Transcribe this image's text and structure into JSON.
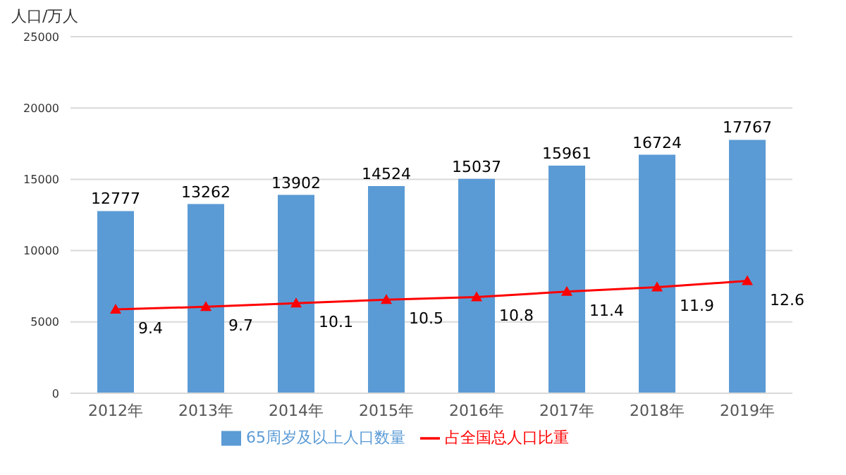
{
  "chart_data": {
    "type": "bar",
    "ylabel": "人口/万人",
    "categories": [
      "2012年",
      "2013年",
      "2014年",
      "2015年",
      "2016年",
      "2017年",
      "2018年",
      "2019年"
    ],
    "series": [
      {
        "name": "65周岁及以上人口数量",
        "color": "#5b9bd5",
        "values": [
          12777,
          13262,
          13902,
          14524,
          15037,
          15961,
          16724,
          17767
        ]
      },
      {
        "name": "占全国总人口比重",
        "type": "line",
        "axis": "y2",
        "color": "#ff0000",
        "marker": "triangle",
        "values": [
          9.4,
          9.7,
          10.1,
          10.5,
          10.8,
          11.4,
          11.9,
          12.6
        ]
      }
    ],
    "ylim": [
      0,
      25000
    ],
    "yticks": [
      0,
      5000,
      10000,
      15000,
      20000,
      25000
    ],
    "y2lim": [
      0,
      40
    ],
    "tick_labels": "xy",
    "grid": "y",
    "legend": "bottom",
    "data_labels": true
  }
}
